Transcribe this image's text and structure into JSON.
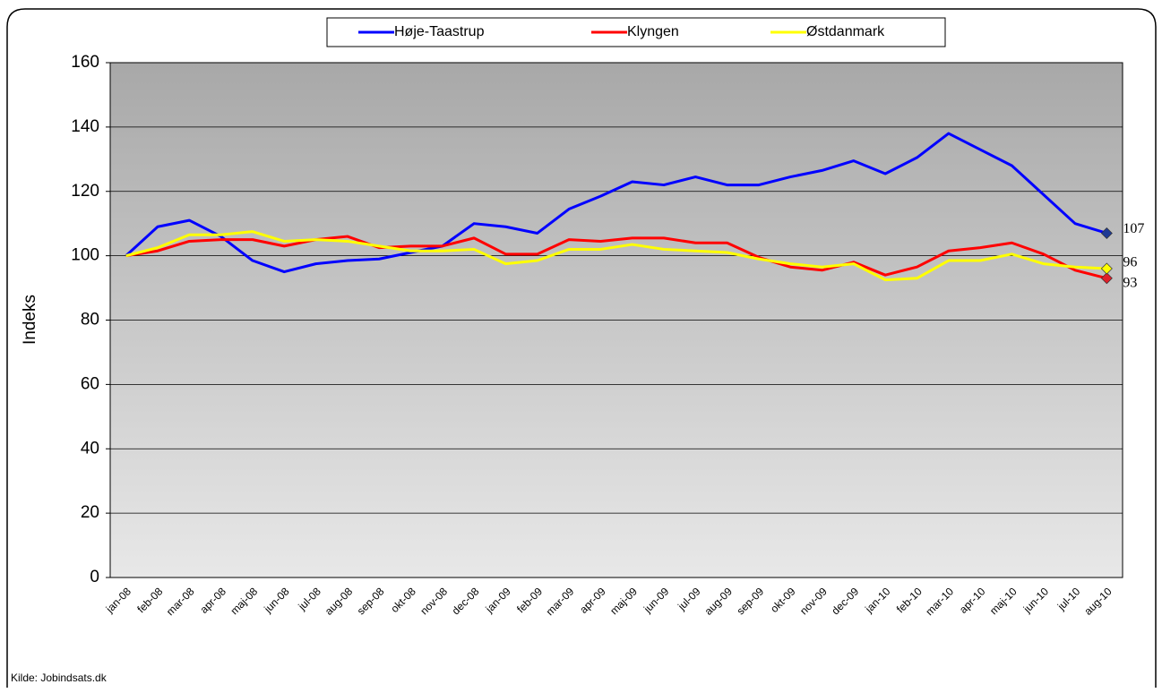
{
  "chart_data": {
    "type": "line",
    "y_label": "Indeks",
    "source": "Kilde: Jobindsats.dk",
    "categories": [
      "jan-08",
      "feb-08",
      "mar-08",
      "apr-08",
      "maj-08",
      "jun-08",
      "jul-08",
      "aug-08",
      "sep-08",
      "okt-08",
      "nov-08",
      "dec-08",
      "jan-09",
      "feb-09",
      "mar-09",
      "apr-09",
      "maj-09",
      "jun-09",
      "jul-09",
      "aug-09",
      "sep-09",
      "okt-09",
      "nov-09",
      "dec-09",
      "jan-10",
      "feb-10",
      "mar-10",
      "apr-10",
      "maj-10",
      "jun-10",
      "jul-10",
      "aug-10"
    ],
    "series": [
      {
        "name": "Høje-Taastrup",
        "color": "#0000ff",
        "marker_color": "#1f3a93",
        "values": [
          100,
          109,
          111,
          106,
          98.5,
          95,
          97.5,
          98.5,
          99,
          101,
          103,
          110,
          109,
          107,
          114.5,
          118.5,
          123,
          122,
          124.5,
          122,
          122,
          124.5,
          126.5,
          129.5,
          125.5,
          130.5,
          138,
          133,
          128,
          119,
          110,
          107
        ]
      },
      {
        "name": "Klyngen",
        "color": "#ff0000",
        "marker_color": "#e0202a",
        "values": [
          100,
          101.5,
          104.5,
          105,
          105,
          103,
          105,
          106,
          102.5,
          103,
          103,
          105.5,
          100.5,
          100.5,
          105,
          104.5,
          105.5,
          105.5,
          104,
          104,
          99.5,
          96.5,
          95.5,
          98,
          94,
          96.5,
          101.5,
          102.5,
          104,
          100.5,
          95.5,
          93
        ]
      },
      {
        "name": "Østdanmark",
        "color": "#ffff00",
        "marker_color": "#ffff00",
        "values": [
          100,
          102.5,
          106.5,
          106.5,
          107.5,
          104.5,
          105,
          104.5,
          103,
          101.5,
          101.5,
          102,
          97.5,
          98.5,
          102,
          102,
          103.5,
          102,
          101.5,
          101,
          99,
          97.5,
          96.5,
          97.5,
          92.5,
          93,
          98.5,
          98.5,
          100.5,
          97.5,
          96.5,
          96
        ]
      }
    ],
    "ylim": [
      0,
      160
    ],
    "yticks": [
      0,
      20,
      40,
      60,
      80,
      100,
      120,
      140,
      160
    ],
    "grid": true,
    "legend": "top"
  }
}
